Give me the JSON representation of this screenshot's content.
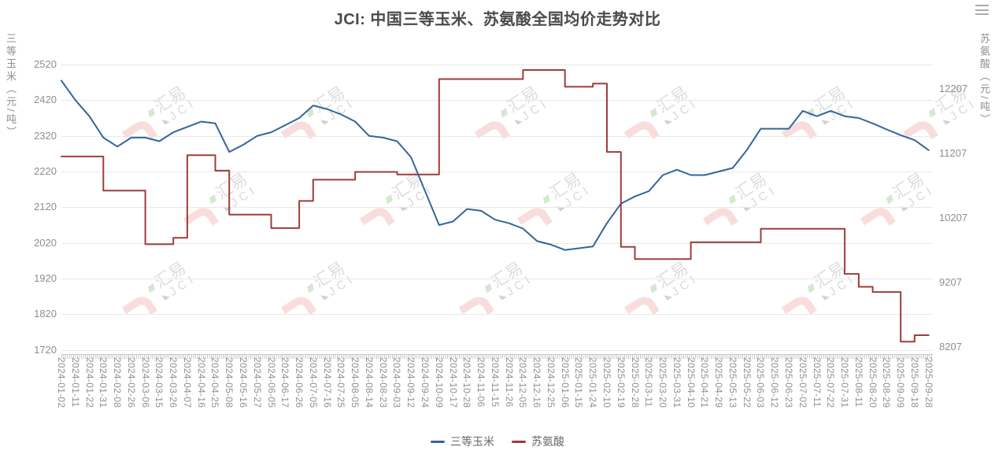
{
  "title": "JCI: 中国三等玉米、苏氨酸全国均价走势对比",
  "toolbox": {
    "menu_icon": "hamburger-menu"
  },
  "left_axis": {
    "name": "三等玉米（元/吨）",
    "ticks": [
      2520,
      2420,
      2320,
      2220,
      2120,
      2020,
      1920,
      1820,
      1720
    ]
  },
  "right_axis": {
    "name": "苏氨酸（元/吨）",
    "ticks": [
      12207,
      11207,
      10207,
      9207,
      8207
    ]
  },
  "legend": {
    "items": [
      {
        "label": "三等玉米",
        "color": "#33669a"
      },
      {
        "label": "苏氨酸",
        "color": "#9e3d3a"
      }
    ]
  },
  "watermark": {
    "cn": "汇易",
    "en": "JCI"
  },
  "colors": {
    "corn_line": "#33669a",
    "threonine_line": "#9e3d3a",
    "grid": "#e8e8e8",
    "axis_label": "#8f8f8f",
    "title": "#4a4a4a",
    "legend_text": "#666666"
  },
  "chart_data": {
    "type": "line",
    "title": "JCI: 中国三等玉米、苏氨酸全国均价走势对比",
    "legend_position": "bottom",
    "grid": true,
    "left_axis_label": "三等玉米（元/吨）",
    "right_axis_label": "苏氨酸（元/吨）",
    "left_ylim": [
      1720,
      2520
    ],
    "right_ylim": [
      8207,
      12207
    ],
    "categories": [
      "2024-01-02",
      "2024-01-11",
      "2024-01-22",
      "2024-01-31",
      "2024-02-08",
      "2024-02-26",
      "2024-03-06",
      "2024-03-15",
      "2024-03-26",
      "2024-04-07",
      "2024-04-16",
      "2024-04-25",
      "2024-05-08",
      "2024-05-16",
      "2024-05-27",
      "2024-06-05",
      "2024-06-17",
      "2024-06-26",
      "2024-07-05",
      "2024-07-16",
      "2024-07-25",
      "2024-08-05",
      "2024-08-14",
      "2024-08-23",
      "2024-09-03",
      "2024-09-12",
      "2024-09-24",
      "2024-10-09",
      "2024-10-17",
      "2024-10-28",
      "2024-11-06",
      "2024-11-15",
      "2024-11-26",
      "2024-12-05",
      "2024-12-16",
      "2024-12-25",
      "2025-01-06",
      "2025-01-15",
      "2025-01-24",
      "2025-02-10",
      "2025-02-19",
      "2025-02-28",
      "2025-03-11",
      "2025-03-20",
      "2025-03-31",
      "2025-04-10",
      "2025-04-21",
      "2025-04-29",
      "2025-05-13",
      "2025-05-22",
      "2025-06-03",
      "2025-06-12",
      "2025-06-23",
      "2025-07-02",
      "2025-07-11",
      "2025-07-22",
      "2025-07-31",
      "2025-08-11",
      "2025-08-20",
      "2025-08-29",
      "2025-09-09",
      "2025-09-18",
      "2025-09-28"
    ],
    "series": [
      {
        "name": "三等玉米",
        "yaxis": "left",
        "color": "#33669a",
        "style": "line",
        "values": [
          2475,
          2420,
          2375,
          2315,
          2290,
          2315,
          2315,
          2305,
          2330,
          2345,
          2360,
          2355,
          2275,
          2295,
          2320,
          2330,
          2350,
          2370,
          2405,
          2395,
          2380,
          2360,
          2320,
          2315,
          2305,
          2260,
          2165,
          2070,
          2080,
          2115,
          2110,
          2085,
          2075,
          2060,
          2025,
          2015,
          2000,
          2005,
          2010,
          2075,
          2130,
          2150,
          2165,
          2210,
          2225,
          2210,
          2210,
          2220,
          2230,
          2280,
          2340,
          2340,
          2340,
          2390,
          2375,
          2390,
          2375,
          2370,
          2355,
          2338,
          2322,
          2308,
          2280
        ]
      },
      {
        "name": "苏氨酸",
        "yaxis": "right",
        "color": "#9e3d3a",
        "style": "step",
        "values": [
          11160,
          11160,
          11160,
          10630,
          10630,
          10630,
          9800,
          9800,
          9900,
          11180,
          11180,
          10940,
          10260,
          10260,
          10260,
          10050,
          10050,
          10470,
          10800,
          10800,
          10800,
          10920,
          10920,
          10920,
          10880,
          10880,
          10880,
          12360,
          12360,
          12360,
          12360,
          12360,
          12360,
          12500,
          12500,
          12500,
          12240,
          12240,
          12290,
          11230,
          9760,
          9570,
          9570,
          9570,
          9570,
          9830,
          9830,
          9830,
          9830,
          9830,
          10040,
          10040,
          10040,
          10040,
          10040,
          10040,
          9340,
          9140,
          9060,
          9060,
          8290,
          8390,
          8390
        ]
      }
    ]
  }
}
